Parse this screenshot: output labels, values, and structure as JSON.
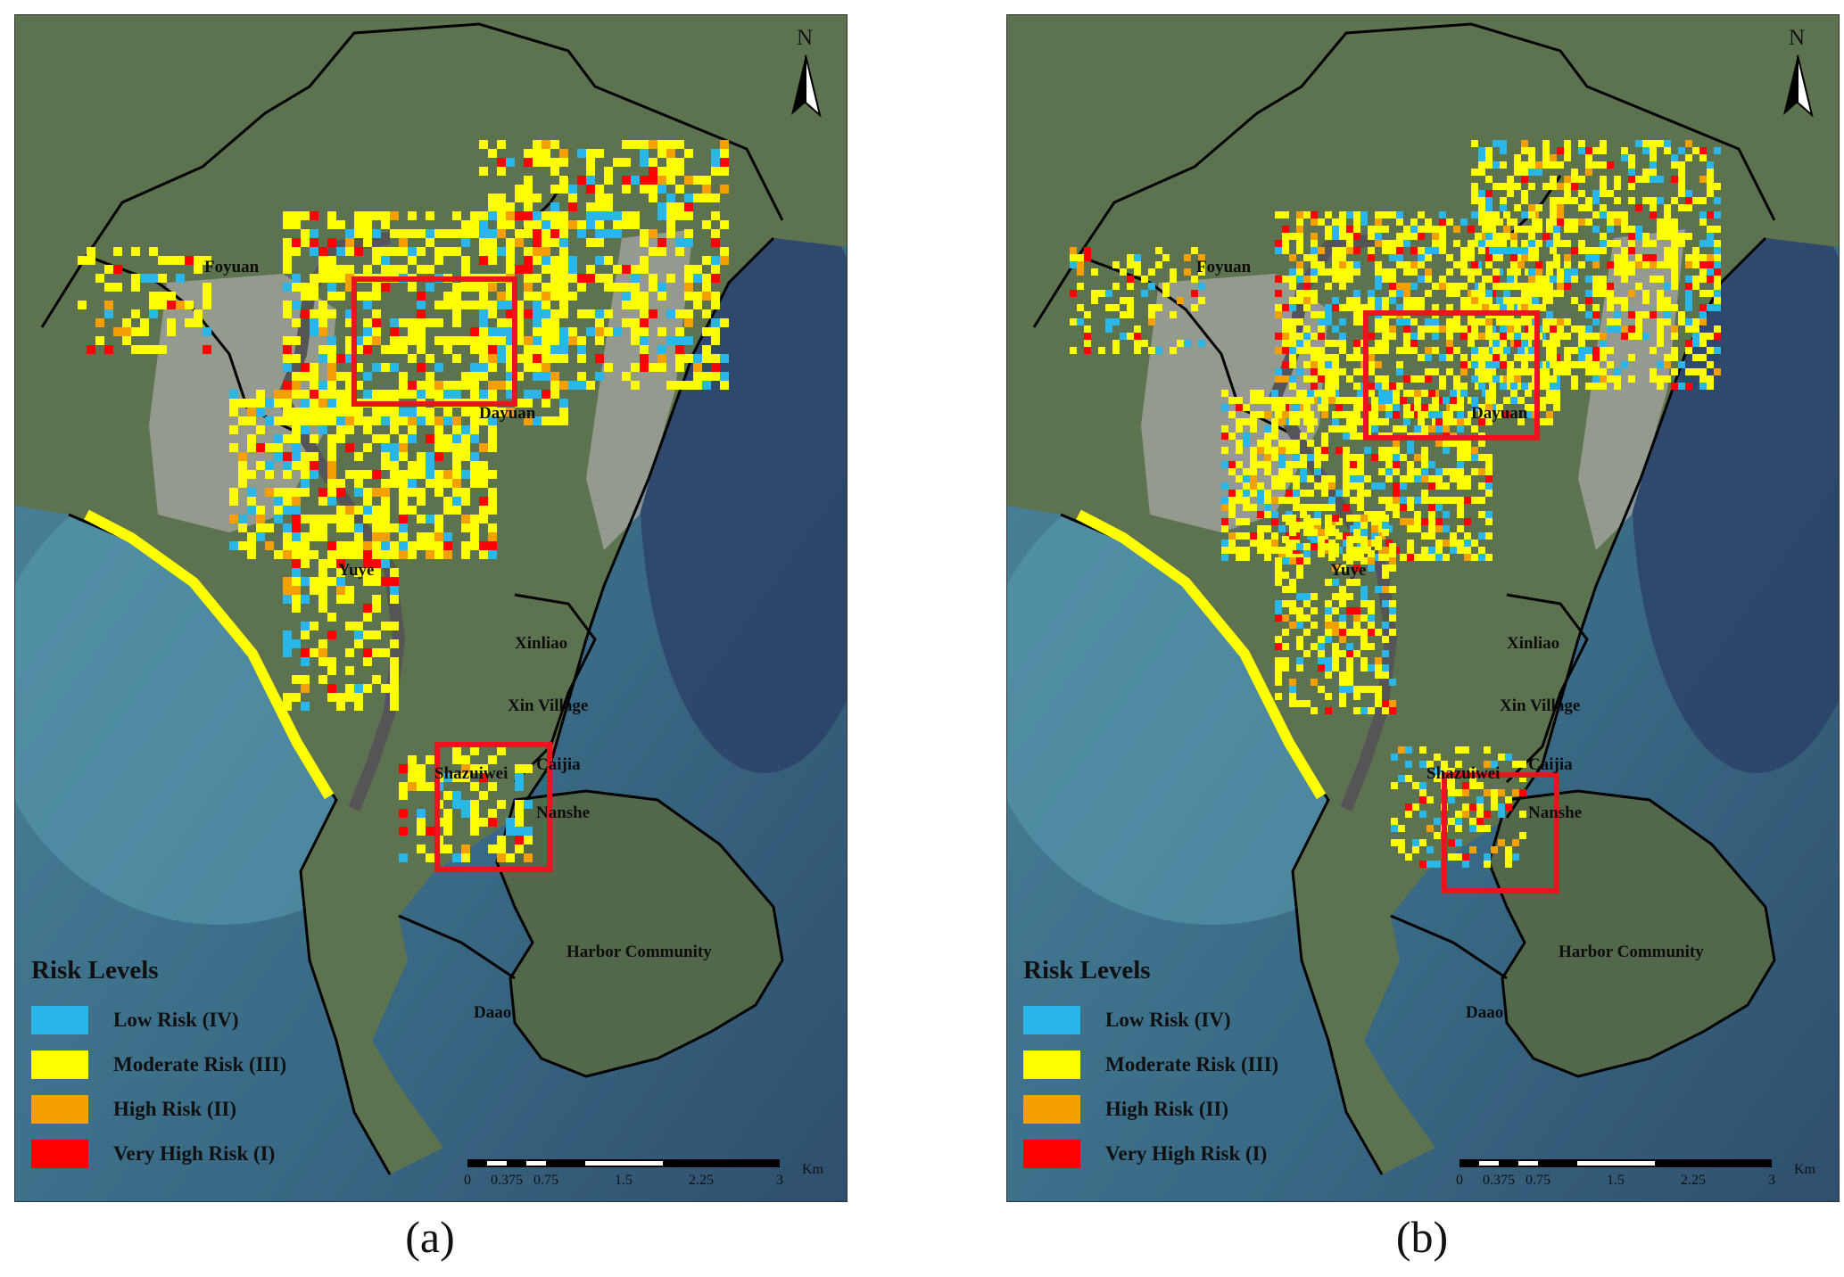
{
  "panels": [
    {
      "caption": "(a)"
    },
    {
      "caption": "(b)"
    }
  ],
  "north_arrow": {
    "label": "N"
  },
  "places": {
    "foyuan": "Foyuan",
    "dayuan": "Dayuan",
    "yuye": "Yuye",
    "xinliao": "Xinliao",
    "xin_village": "Xin Village",
    "shazuiwei": "Shazuiwei",
    "caijia": "Caijia",
    "nanshe": "Nanshe",
    "harbor_community": "Harbor Community",
    "daao": "Daao"
  },
  "legend": {
    "title": "Risk Levels",
    "items": [
      {
        "label": "Low Risk (IV)",
        "color": "#29b6e8"
      },
      {
        "label": "Moderate Risk (III)",
        "color": "#ffff00"
      },
      {
        "label": "High Risk (II)",
        "color": "#f5a000"
      },
      {
        "label": "Very High Risk (I)",
        "color": "#ff0000"
      }
    ]
  },
  "scale_bar": {
    "unit": "Km",
    "ticks": [
      "0",
      "0.375",
      "0.75",
      "1.5",
      "2.25",
      "3"
    ]
  },
  "colors": {
    "highlight_box": "#e8141e",
    "land": "#5d7350",
    "sea": "#3e6f86",
    "urban": "#a7a7a3",
    "boundary": "#000000"
  }
}
